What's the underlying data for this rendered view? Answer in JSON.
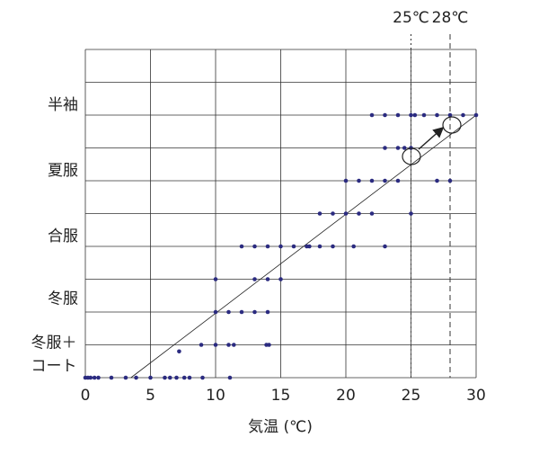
{
  "chart_data": {
    "type": "scatter",
    "xlabel": "気温 (℃)",
    "xlim": [
      0,
      30
    ],
    "xticks": [
      0,
      5,
      10,
      15,
      20,
      25,
      30
    ],
    "ylim": [
      0,
      10
    ],
    "ygrid": [
      0,
      1,
      2,
      3,
      4,
      5,
      6,
      7,
      8,
      9,
      10
    ],
    "yticks": [
      {
        "value": 0.7,
        "label": "冬服＋\nコート"
      },
      {
        "value": 2.4,
        "label": "冬服"
      },
      {
        "value": 4.3,
        "label": "合服"
      },
      {
        "value": 6.3,
        "label": "夏服"
      },
      {
        "value": 8.3,
        "label": "半袖"
      }
    ],
    "grid": true,
    "reference_lines": [
      {
        "value": 25,
        "label": "25℃",
        "style": "dotted"
      },
      {
        "value": 28,
        "label": "28℃",
        "style": "dashed"
      }
    ],
    "trend_line": {
      "x": [
        3.5,
        30
      ],
      "y": [
        0,
        8
      ]
    },
    "series": [
      {
        "color": "#2b2b80",
        "x": [
          0,
          0.2,
          0.4,
          0.7,
          1.0,
          2.0,
          3.1,
          3.9,
          5.0,
          6.1,
          6.5,
          7.0,
          7.6,
          8.0,
          9.0,
          11.1,
          8.9,
          10,
          11,
          11.4,
          13.9,
          14.1,
          7.2,
          10,
          11,
          12,
          13,
          14,
          10,
          13,
          14,
          15,
          12,
          13,
          14,
          15,
          16,
          17,
          17.2,
          18,
          19,
          20.6,
          23,
          18,
          19,
          20,
          21,
          22,
          25,
          20,
          21,
          22,
          23,
          24,
          27,
          28,
          23,
          24,
          24.5,
          25,
          22,
          23,
          24,
          25,
          25.3,
          26,
          27,
          28,
          29,
          30
        ],
        "y": [
          0,
          0,
          0,
          0,
          0,
          0,
          0,
          0,
          0,
          0,
          0,
          0,
          0,
          0,
          0,
          0,
          1,
          1,
          1,
          1,
          1,
          1,
          0.8,
          2,
          2,
          2,
          2,
          2,
          3,
          3,
          3,
          3,
          4,
          4,
          4,
          4,
          4,
          4,
          4,
          4,
          4,
          4,
          4,
          5,
          5,
          5,
          5,
          5,
          5,
          6,
          6,
          6,
          6,
          6,
          6,
          6,
          7,
          7,
          7,
          7,
          8,
          8,
          8,
          8,
          8,
          8,
          8,
          8,
          8,
          8
        ]
      }
    ]
  }
}
